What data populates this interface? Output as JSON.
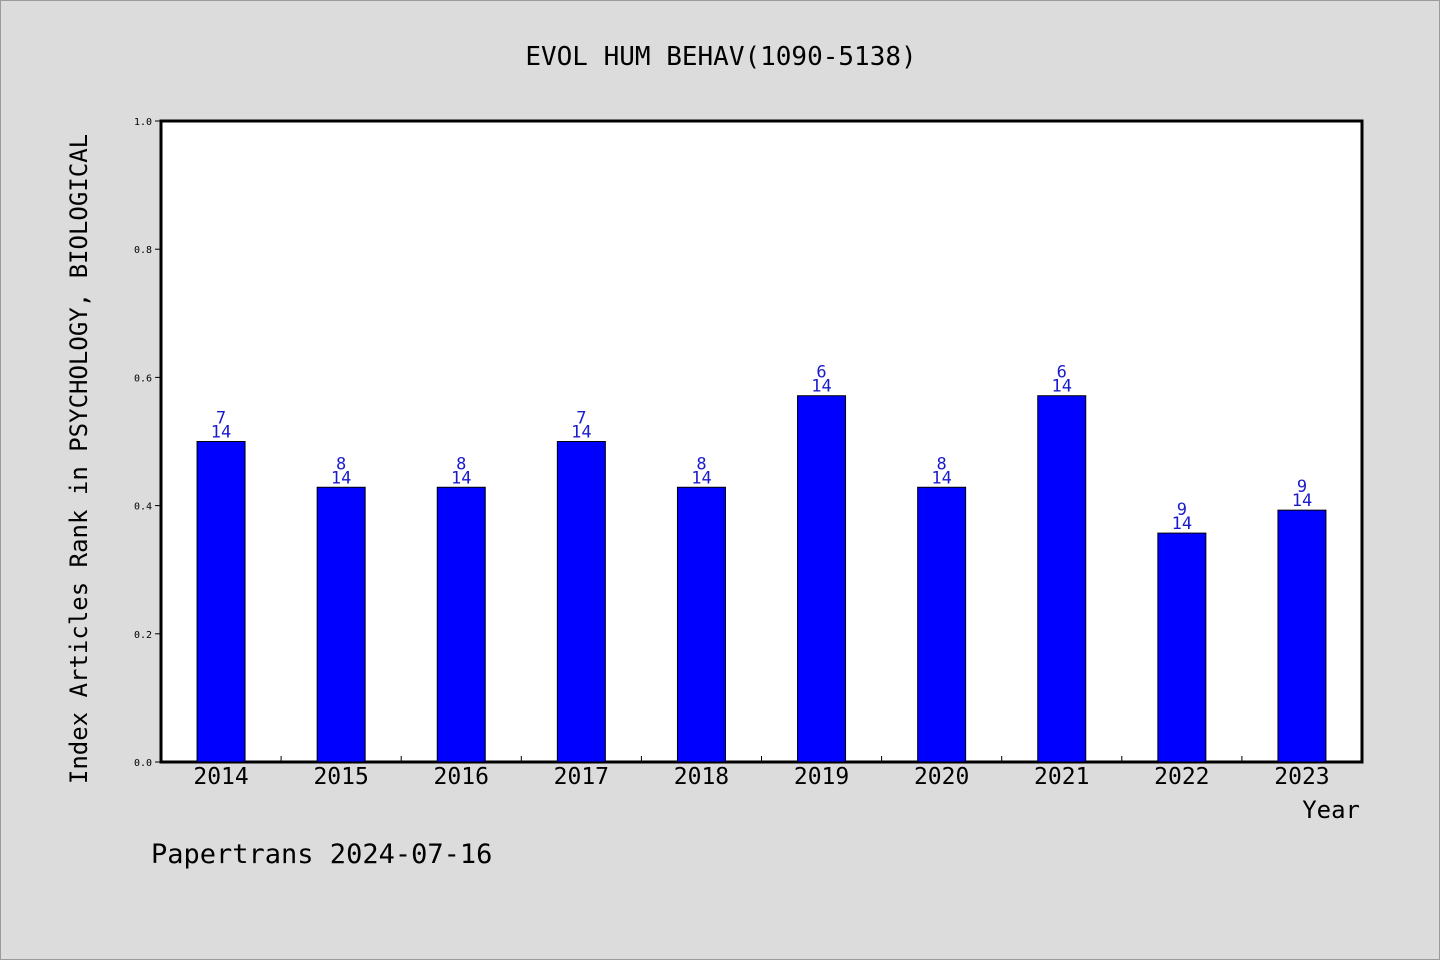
{
  "chart_data": {
    "type": "bar",
    "title": "EVOL HUM BEHAV(1090-5138)",
    "xlabel": "Year",
    "ylabel": "Index Articles Rank in PSYCHOLOGY, BIOLOGICAL",
    "categories": [
      "2014",
      "2015",
      "2016",
      "2017",
      "2018",
      "2019",
      "2020",
      "2021",
      "2022",
      "2023"
    ],
    "values": [
      0.5,
      0.4286,
      0.4286,
      0.5,
      0.4286,
      0.5714,
      0.4286,
      0.5714,
      0.3571,
      0.3929
    ],
    "rank": [
      "7",
      "8",
      "8",
      "7",
      "8",
      "6",
      "8",
      "6",
      "9",
      "9"
    ],
    "total": [
      "14",
      "14",
      "14",
      "14",
      "14",
      "14",
      "14",
      "14",
      "14",
      "14"
    ],
    "yticks": [
      "0.0",
      "0.2",
      "0.4",
      "0.6",
      "0.8",
      "1.0"
    ],
    "ylim": [
      0,
      1
    ],
    "grid": false,
    "bar_color": "#0000ff",
    "label_color": "#1a1acc"
  },
  "footer": "Papertrans 2024-07-16"
}
